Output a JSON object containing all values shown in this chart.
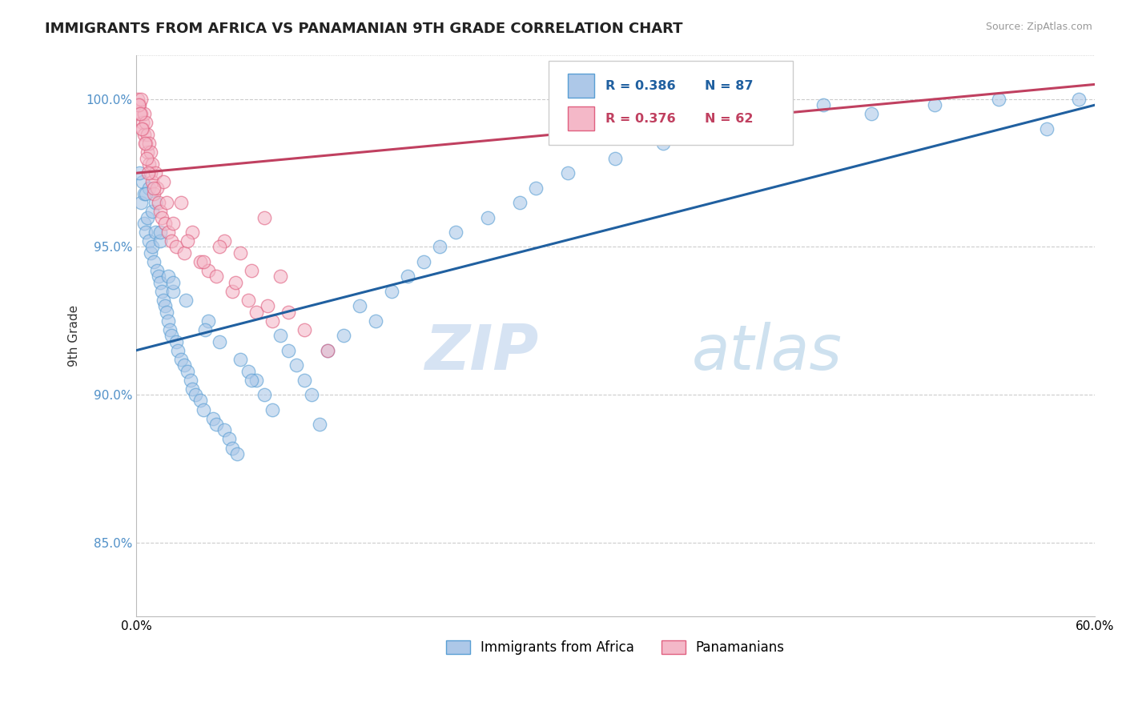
{
  "title": "IMMIGRANTS FROM AFRICA VS PANAMANIAN 9TH GRADE CORRELATION CHART",
  "source": "Source: ZipAtlas.com",
  "ylabel": "9th Grade",
  "xlim": [
    0.0,
    60.0
  ],
  "ylim": [
    82.5,
    101.5
  ],
  "yticks": [
    85.0,
    90.0,
    95.0,
    100.0
  ],
  "ytick_labels": [
    "85.0%",
    "90.0%",
    "95.0%",
    "100.0%"
  ],
  "legend_blue_r": "R = 0.386",
  "legend_blue_n": "N = 87",
  "legend_pink_r": "R = 0.376",
  "legend_pink_n": "N = 62",
  "legend_blue_label": "Immigrants from Africa",
  "legend_pink_label": "Panamanians",
  "blue_color": "#adc8e8",
  "pink_color": "#f4b8c8",
  "blue_edge_color": "#5a9fd4",
  "pink_edge_color": "#e06080",
  "blue_line_color": "#2060a0",
  "pink_line_color": "#c04060",
  "watermark_zip": "ZIP",
  "watermark_atlas": "atlas",
  "blue_scatter_x": [
    0.3,
    0.4,
    0.5,
    0.5,
    0.6,
    0.7,
    0.8,
    0.8,
    0.9,
    1.0,
    1.0,
    1.1,
    1.2,
    1.2,
    1.3,
    1.4,
    1.5,
    1.5,
    1.6,
    1.7,
    1.8,
    1.9,
    2.0,
    2.0,
    2.1,
    2.2,
    2.3,
    2.5,
    2.6,
    2.8,
    3.0,
    3.1,
    3.2,
    3.4,
    3.5,
    3.7,
    4.0,
    4.2,
    4.5,
    4.8,
    5.0,
    5.2,
    5.5,
    5.8,
    6.0,
    6.3,
    6.5,
    7.0,
    7.5,
    8.0,
    8.5,
    9.0,
    9.5,
    10.0,
    10.5,
    11.0,
    12.0,
    13.0,
    14.0,
    15.0,
    16.0,
    17.0,
    18.0,
    19.0,
    20.0,
    22.0,
    24.0,
    25.0,
    27.0,
    30.0,
    33.0,
    35.0,
    38.0,
    40.0,
    43.0,
    46.0,
    50.0,
    54.0,
    57.0,
    59.0,
    0.2,
    0.6,
    1.5,
    2.3,
    4.3,
    7.2,
    11.5
  ],
  "blue_scatter_y": [
    96.5,
    97.2,
    95.8,
    96.8,
    95.5,
    96.0,
    95.2,
    97.0,
    94.8,
    95.0,
    96.2,
    94.5,
    95.5,
    96.5,
    94.2,
    94.0,
    93.8,
    95.2,
    93.5,
    93.2,
    93.0,
    92.8,
    92.5,
    94.0,
    92.2,
    92.0,
    93.5,
    91.8,
    91.5,
    91.2,
    91.0,
    93.2,
    90.8,
    90.5,
    90.2,
    90.0,
    89.8,
    89.5,
    92.5,
    89.2,
    89.0,
    91.8,
    88.8,
    88.5,
    88.2,
    88.0,
    91.2,
    90.8,
    90.5,
    90.0,
    89.5,
    92.0,
    91.5,
    91.0,
    90.5,
    90.0,
    91.5,
    92.0,
    93.0,
    92.5,
    93.5,
    94.0,
    94.5,
    95.0,
    95.5,
    96.0,
    96.5,
    97.0,
    97.5,
    98.0,
    98.5,
    99.0,
    99.2,
    99.5,
    99.8,
    99.5,
    99.8,
    100.0,
    99.0,
    100.0,
    97.5,
    96.8,
    95.5,
    93.8,
    92.2,
    90.5,
    89.0
  ],
  "pink_scatter_x": [
    0.1,
    0.2,
    0.2,
    0.3,
    0.3,
    0.4,
    0.4,
    0.5,
    0.5,
    0.6,
    0.6,
    0.7,
    0.7,
    0.8,
    0.8,
    0.9,
    0.9,
    1.0,
    1.0,
    1.1,
    1.2,
    1.3,
    1.4,
    1.5,
    1.6,
    1.7,
    1.8,
    2.0,
    2.2,
    2.5,
    2.8,
    3.0,
    3.5,
    4.0,
    4.5,
    5.0,
    5.5,
    6.0,
    6.5,
    7.0,
    7.5,
    8.0,
    8.5,
    9.0,
    0.15,
    0.25,
    0.35,
    0.55,
    0.65,
    0.75,
    1.1,
    1.9,
    2.3,
    3.2,
    4.2,
    5.2,
    6.2,
    7.2,
    8.2,
    9.5,
    10.5,
    12.0
  ],
  "pink_scatter_y": [
    100.0,
    99.8,
    99.5,
    99.5,
    100.0,
    99.2,
    99.0,
    98.8,
    99.5,
    98.5,
    99.2,
    98.2,
    98.8,
    97.8,
    98.5,
    97.5,
    98.2,
    97.2,
    97.8,
    96.8,
    97.5,
    97.0,
    96.5,
    96.2,
    96.0,
    97.2,
    95.8,
    95.5,
    95.2,
    95.0,
    96.5,
    94.8,
    95.5,
    94.5,
    94.2,
    94.0,
    95.2,
    93.5,
    94.8,
    93.2,
    92.8,
    96.0,
    92.5,
    94.0,
    99.8,
    99.5,
    99.0,
    98.5,
    98.0,
    97.5,
    97.0,
    96.5,
    95.8,
    95.2,
    94.5,
    95.0,
    93.8,
    94.2,
    93.0,
    92.8,
    92.2,
    91.5
  ],
  "blue_trend_x": [
    0.0,
    60.0
  ],
  "blue_trend_y": [
    91.5,
    99.8
  ],
  "pink_trend_x": [
    0.0,
    60.0
  ],
  "pink_trend_y": [
    97.5,
    100.5
  ]
}
